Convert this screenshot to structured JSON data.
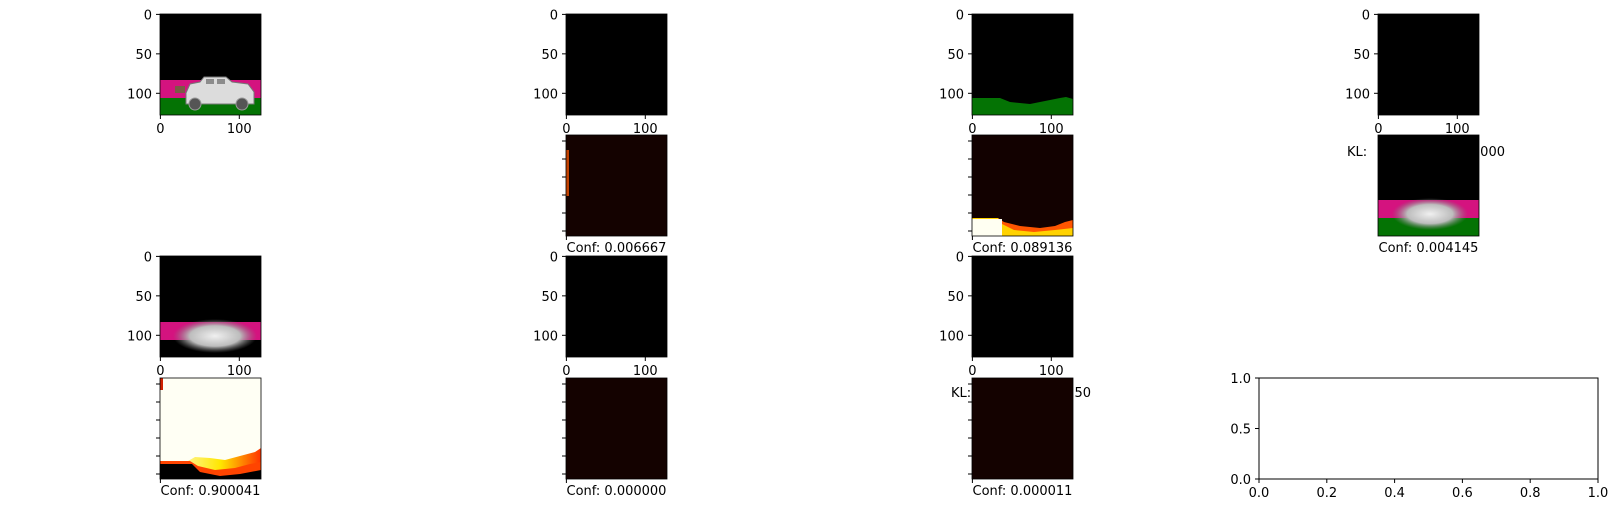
{
  "chart_data": {
    "type": "image-grid",
    "image_axis_ticks": [
      "0",
      "50",
      "100"
    ],
    "empty_axis": {
      "xticks": [
        "0.0",
        "0.2",
        "0.4",
        "0.6",
        "0.8",
        "1.0"
      ],
      "yticks": [
        "0.0",
        "0.5",
        "1.0"
      ],
      "xlim": [
        0.0,
        1.0
      ],
      "ylim": [
        0.0,
        1.0
      ]
    },
    "confidence_labels": [
      "Conf: 0.006667",
      "Conf: 0.089136",
      "Conf: 0.004145",
      "Conf: 0.900041",
      "Conf: 0.000000",
      "Conf: 0.000011"
    ],
    "kl_labels": [
      "KL:",
      "000",
      "KL:",
      "50"
    ]
  }
}
